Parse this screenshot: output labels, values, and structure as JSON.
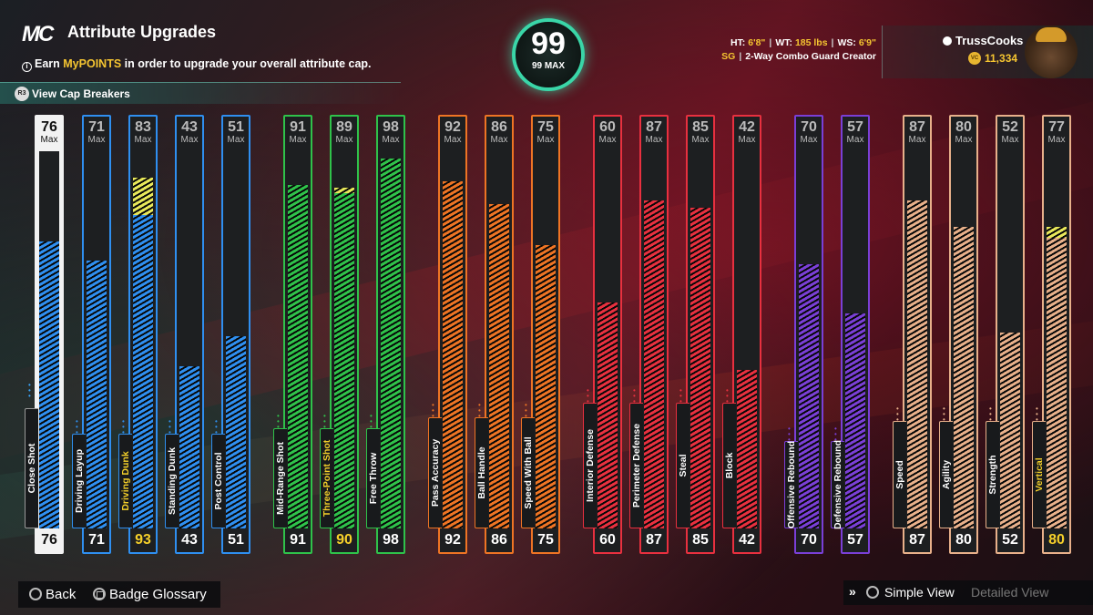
{
  "header": {
    "logo": "MC",
    "title": "Attribute Upgrades",
    "info_prefix": "Earn ",
    "info_highlight": "MyPOINTS",
    "info_suffix": " in order to upgrade your overall attribute cap.",
    "cap_breakers_label": "View Cap Breakers"
  },
  "overall": {
    "value": "99",
    "max_label": "99 MAX"
  },
  "player": {
    "ht_label": "HT:",
    "ht": "6'8\"",
    "wt_label": "WT:",
    "wt": "185 lbs",
    "ws_label": "WS:",
    "ws": "6'9\"",
    "position": "SG",
    "build": "2-Way Combo Guard Creator",
    "username": "TrussCooks",
    "vc": "11,334"
  },
  "max_word": "Max",
  "colors": {
    "finishing": "#2f8ff0",
    "shooting": "#2fc24a",
    "playmaking": "#ee7424",
    "defense": "#e8303f",
    "rebounding": "#7a3fd6",
    "physical": "#e8b08a",
    "boost": "#e8e85a",
    "highlight": "#f5d02a"
  },
  "attributes": [
    {
      "name": "Close Shot",
      "group": "finishing",
      "max": 76,
      "current": 76,
      "boost": 0,
      "highlight": false
    },
    {
      "name": "Driving Layup",
      "group": "finishing",
      "max": 71,
      "current": 71,
      "boost": 0,
      "highlight": false
    },
    {
      "name": "Driving Dunk",
      "group": "finishing",
      "max": 83,
      "current": 93,
      "boost": 10,
      "highlight": true
    },
    {
      "name": "Standing Dunk",
      "group": "finishing",
      "max": 43,
      "current": 43,
      "boost": 0,
      "highlight": false
    },
    {
      "name": "Post Control",
      "group": "finishing",
      "max": 51,
      "current": 51,
      "boost": 0,
      "highlight": false
    },
    {
      "name": "Mid-Range Shot",
      "group": "shooting",
      "max": 91,
      "current": 91,
      "boost": 0,
      "highlight": false
    },
    {
      "name": "Three-Point Shot",
      "group": "shooting",
      "max": 89,
      "current": 90,
      "boost": 1,
      "highlight": true
    },
    {
      "name": "Free Throw",
      "group": "shooting",
      "max": 98,
      "current": 98,
      "boost": 0,
      "highlight": false
    },
    {
      "name": "Pass Accuracy",
      "group": "playmaking",
      "max": 92,
      "current": 92,
      "boost": 0,
      "highlight": false
    },
    {
      "name": "Ball Handle",
      "group": "playmaking",
      "max": 86,
      "current": 86,
      "boost": 0,
      "highlight": false
    },
    {
      "name": "Speed With Ball",
      "group": "playmaking",
      "max": 75,
      "current": 75,
      "boost": 0,
      "highlight": false
    },
    {
      "name": "Interior Defense",
      "group": "defense",
      "max": 60,
      "current": 60,
      "boost": 0,
      "highlight": false
    },
    {
      "name": "Perimeter Defense",
      "group": "defense",
      "max": 87,
      "current": 87,
      "boost": 0,
      "highlight": false
    },
    {
      "name": "Steal",
      "group": "defense",
      "max": 85,
      "current": 85,
      "boost": 0,
      "highlight": false
    },
    {
      "name": "Block",
      "group": "defense",
      "max": 42,
      "current": 42,
      "boost": 0,
      "highlight": false
    },
    {
      "name": "Offensive Rebound",
      "group": "rebounding",
      "max": 70,
      "current": 70,
      "boost": 0,
      "highlight": false
    },
    {
      "name": "Defensive Rebound",
      "group": "rebounding",
      "max": 57,
      "current": 57,
      "boost": 0,
      "highlight": false
    },
    {
      "name": "Speed",
      "group": "physical",
      "max": 87,
      "current": 87,
      "boost": 0,
      "highlight": false
    },
    {
      "name": "Agility",
      "group": "physical",
      "max": 80,
      "current": 80,
      "boost": 0,
      "highlight": false
    },
    {
      "name": "Strength",
      "group": "physical",
      "max": 52,
      "current": 52,
      "boost": 0,
      "highlight": false
    },
    {
      "name": "Vertical",
      "group": "physical",
      "max": 77,
      "current": 80,
      "boost": 3,
      "highlight": true
    }
  ],
  "footer": {
    "back": "Back",
    "badge_glossary": "Badge Glossary",
    "simple_view": "Simple View",
    "detailed_view": "Detailed View"
  }
}
